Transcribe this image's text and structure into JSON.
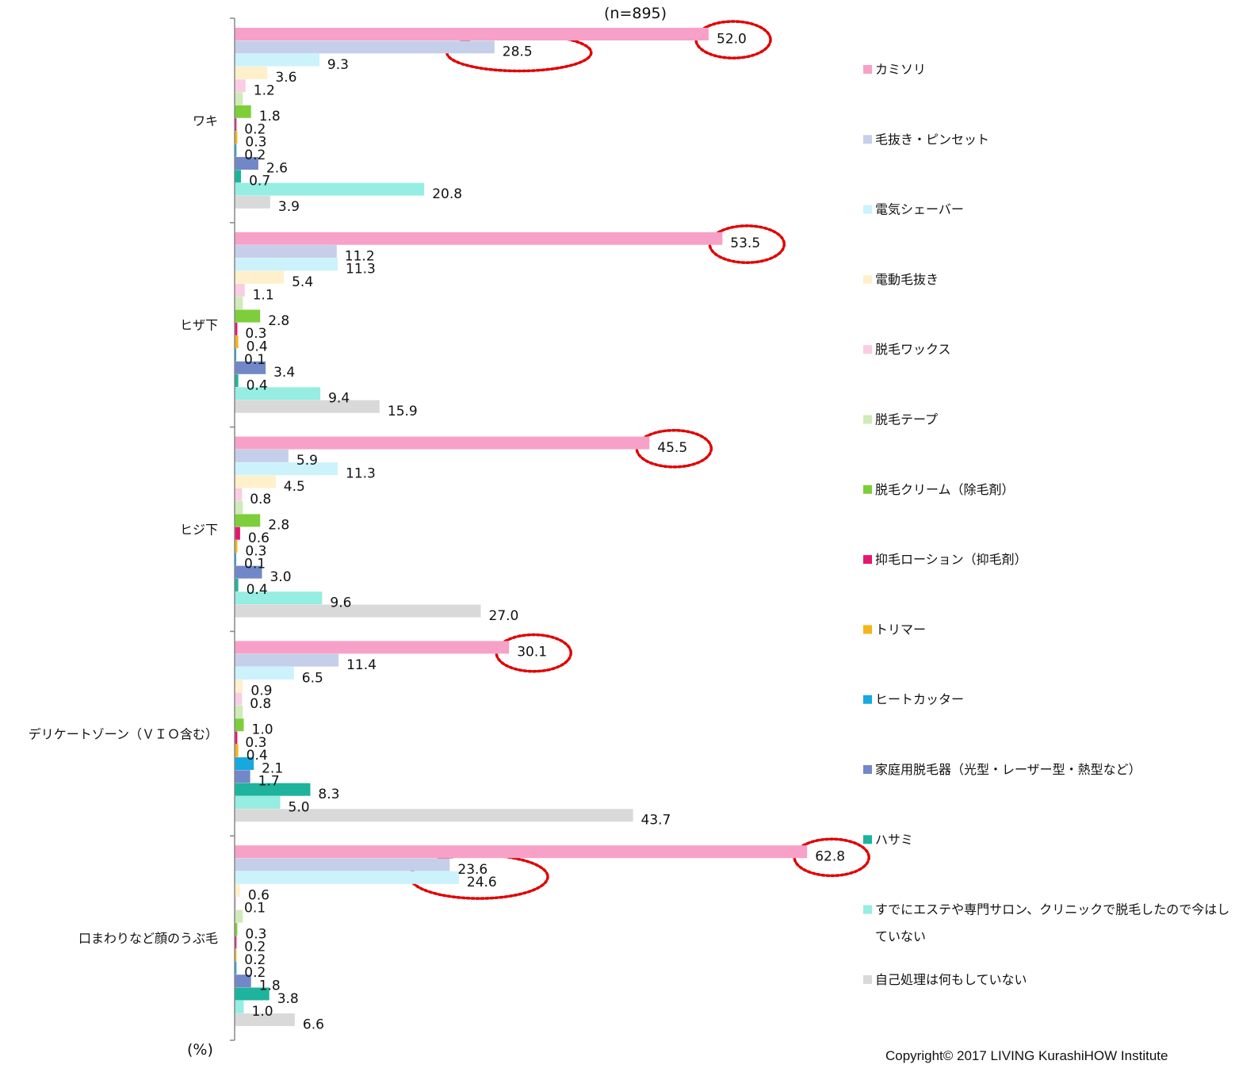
{
  "chart_data": {
    "type": "bar",
    "orientation": "horizontal",
    "sample_note": "(n=895)",
    "unit_label": "(%)",
    "legend_position": "right",
    "categories": [
      "ワキ",
      "ヒザ下",
      "ヒジ下",
      "デリケートゾーン（ＶＩＯ含む）",
      "口まわりなど顔のうぶ毛"
    ],
    "series": [
      {
        "name": "カミソリ",
        "color": "#F7A1C8",
        "values": [
          52.0,
          53.5,
          45.5,
          30.1,
          62.8
        ]
      },
      {
        "name": "毛抜き・ピンセット",
        "color": "#C5CFEA",
        "values": [
          28.5,
          11.2,
          5.9,
          11.4,
          23.6
        ]
      },
      {
        "name": "電気シェーバー",
        "color": "#CCF2FB",
        "values": [
          9.3,
          11.3,
          11.3,
          6.5,
          24.6
        ]
      },
      {
        "name": "電動毛抜き",
        "color": "#FFF0CC",
        "values": [
          3.6,
          5.4,
          4.5,
          0.9,
          0.6
        ]
      },
      {
        "name": "脱毛ワックス",
        "color": "#FACDE2",
        "values": [
          1.2,
          1.1,
          0.8,
          0.8,
          0.1
        ]
      },
      {
        "name": "脱毛テープ",
        "color": "#CFEBB8",
        "values": [
          null,
          null,
          null,
          null,
          null
        ]
      },
      {
        "name": "脱毛クリーム（除毛剤）",
        "color": "#7ECE3C",
        "values": [
          1.8,
          2.8,
          2.8,
          1.0,
          0.3
        ]
      },
      {
        "name": "抑毛ローション（抑毛剤）",
        "color": "#E5176F",
        "values": [
          0.2,
          0.3,
          0.6,
          0.3,
          0.2
        ]
      },
      {
        "name": "トリマー",
        "color": "#F5B41C",
        "values": [
          0.3,
          0.4,
          0.3,
          0.4,
          0.2
        ]
      },
      {
        "name": "ヒートカッター",
        "color": "#17A8DE",
        "values": [
          0.2,
          0.1,
          0.1,
          2.1,
          0.2
        ]
      },
      {
        "name": "家庭用脱毛器（光型・レーザー型・熱型など）",
        "color": "#7287C8",
        "values": [
          2.6,
          3.4,
          3.0,
          1.7,
          1.8
        ]
      },
      {
        "name": "ハサミ",
        "color": "#1DB39D",
        "values": [
          0.7,
          0.4,
          0.4,
          8.3,
          3.8
        ]
      },
      {
        "name": "すでにエステや専門サロン、クリニックで脱毛したので今はしていない",
        "legend_lines": [
          "すでにエステや専門サロン、クリニックで脱毛したので今はし",
          "ていない"
        ],
        "color": "#96EDE1",
        "values": [
          20.8,
          9.4,
          9.6,
          5.0,
          1.0
        ]
      },
      {
        "name": "自己処理は何もしていない",
        "color": "#D9D9D9",
        "values": [
          3.9,
          15.9,
          27.0,
          43.7,
          6.6
        ]
      }
    ],
    "highlighted": [
      {
        "category": "ワキ",
        "series": [
          "カミソリ"
        ]
      },
      {
        "category": "ワキ",
        "series": [
          "毛抜き・ピンセット"
        ]
      },
      {
        "category": "ヒザ下",
        "series": [
          "カミソリ"
        ]
      },
      {
        "category": "ヒジ下",
        "series": [
          "カミソリ"
        ]
      },
      {
        "category": "デリケートゾーン（ＶＩＯ含む）",
        "series": [
          "カミソリ"
        ]
      },
      {
        "category": "口まわりなど顔のうぶ毛",
        "series": [
          "カミソリ"
        ]
      },
      {
        "category": "口まわりなど顔のうぶ毛",
        "series": [
          "毛抜き・ピンセット",
          "電気シェーバー"
        ]
      }
    ],
    "highlight_color": "#E00000"
  },
  "copyright": "Copyright© 2017 LIVING KurashiHOW Institute"
}
